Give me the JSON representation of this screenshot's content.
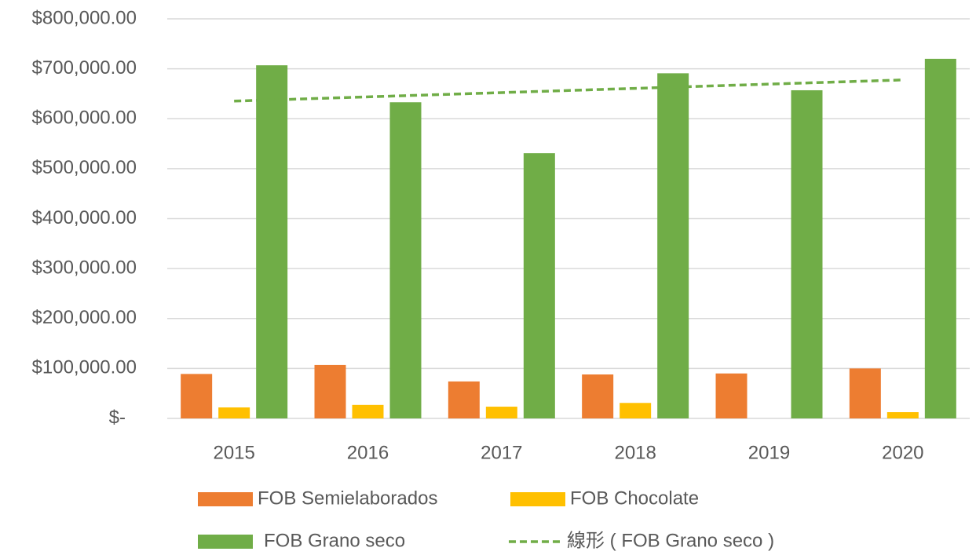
{
  "chart_data": {
    "type": "bar",
    "categories": [
      "2015",
      "2016",
      "2017",
      "2018",
      "2019",
      "2020"
    ],
    "series": [
      {
        "name": "FOB Semielaborados",
        "color": "#ed7d31",
        "values": [
          89000,
          107000,
          74000,
          88000,
          90000,
          100000
        ]
      },
      {
        "name": "FOB Chocolate",
        "color": "#ffc000",
        "values": [
          22000,
          27000,
          23500,
          31000,
          0,
          12500
        ]
      },
      {
        "name": "FOB Grano seco",
        "color": "#70ad47",
        "values": [
          707000,
          633000,
          531000,
          691000,
          657000,
          720000
        ]
      },
      {
        "name": "線形 ( FOB Grano seco )",
        "color": "#70ad47",
        "type": "line",
        "dashed": true,
        "values": [
          635300,
          643800,
          652300,
          660800,
          669300,
          677700
        ]
      }
    ],
    "ylim": [
      0,
      800000
    ],
    "yticks": [
      {
        "value": 0,
        "label": "$-"
      },
      {
        "value": 100000,
        "label": "$100,000.00"
      },
      {
        "value": 200000,
        "label": "$200,000.00"
      },
      {
        "value": 300000,
        "label": "$300,000.00"
      },
      {
        "value": 400000,
        "label": "$400,000.00"
      },
      {
        "value": 500000,
        "label": "$500,000.00"
      },
      {
        "value": 600000,
        "label": "$600,000.00"
      },
      {
        "value": 700000,
        "label": "$700,000.00"
      },
      {
        "value": 800000,
        "label": "$800,000.00"
      }
    ],
    "grid": true,
    "legend": "bottom"
  }
}
